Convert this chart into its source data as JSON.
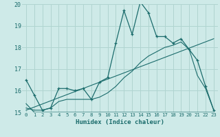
{
  "xlabel": "Humidex (Indice chaleur)",
  "background_color": "#ceeae8",
  "grid_color": "#b0d4d0",
  "line_color": "#1a6b6b",
  "xlim": [
    -0.5,
    23.5
  ],
  "ylim": [
    15,
    20
  ],
  "yticks": [
    15,
    16,
    17,
    18,
    19,
    20
  ],
  "xticks": [
    0,
    1,
    2,
    3,
    4,
    5,
    6,
    7,
    8,
    9,
    10,
    11,
    12,
    13,
    14,
    15,
    16,
    17,
    18,
    19,
    20,
    21,
    22,
    23
  ],
  "line1_x": [
    0,
    1,
    2,
    3,
    4,
    5,
    6,
    7,
    8,
    9,
    10,
    11,
    12,
    13,
    14,
    15,
    16,
    17,
    18,
    19,
    20,
    21,
    22,
    23
  ],
  "line1_y": [
    16.5,
    15.8,
    15.1,
    15.2,
    16.1,
    16.1,
    16.0,
    16.1,
    15.6,
    16.4,
    16.6,
    18.2,
    19.7,
    18.6,
    20.1,
    19.6,
    18.5,
    18.5,
    18.2,
    18.4,
    17.9,
    17.4,
    16.2,
    15.1
  ],
  "line2_x": [
    0,
    1,
    2,
    3,
    4,
    5,
    6,
    7,
    8,
    9,
    10,
    11,
    12,
    13,
    14,
    15,
    16,
    17,
    18,
    19,
    20,
    21,
    22,
    23
  ],
  "line2_y": [
    15.4,
    15.0,
    15.0,
    15.0,
    15.0,
    15.0,
    15.0,
    15.0,
    15.0,
    15.0,
    15.0,
    15.0,
    15.0,
    15.0,
    15.0,
    15.0,
    15.0,
    15.0,
    15.0,
    15.0,
    15.0,
    15.0,
    15.0,
    15.0
  ],
  "line3_x": [
    0,
    1,
    2,
    3,
    4,
    5,
    6,
    7,
    8,
    9,
    10,
    11,
    12,
    13,
    14,
    15,
    16,
    17,
    18,
    19,
    20,
    21,
    22,
    23
  ],
  "line3_y": [
    15.2,
    15.1,
    15.1,
    15.2,
    15.5,
    15.6,
    15.6,
    15.6,
    15.6,
    15.7,
    15.9,
    16.2,
    16.6,
    16.9,
    17.3,
    17.6,
    17.8,
    18.0,
    18.1,
    18.25,
    17.9,
    16.7,
    16.1,
    15.1
  ],
  "line4_x": [
    0,
    23
  ],
  "line4_y": [
    15.1,
    18.4
  ]
}
